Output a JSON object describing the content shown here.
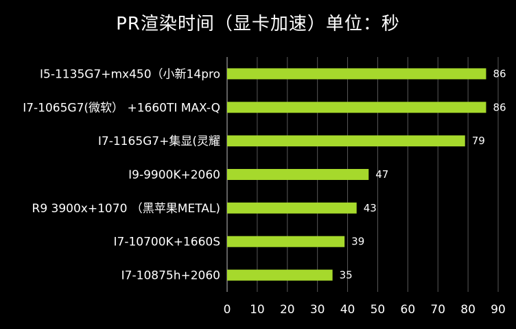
{
  "chart_data": {
    "type": "bar",
    "orientation": "horizontal",
    "title": "PR渲染时间（显卡加速）单位：秒",
    "categories": [
      "I5-1135G7+mx450（小新14pro",
      "I7-1065G7(微软） +1660TI MAX-Q",
      "I7-1165G7+集显(灵耀",
      "I9-9900K+2060",
      "R9 3900x+1070 （黑苹果METAL)",
      "I7-10700K+1660S",
      "I7-10875h+2060"
    ],
    "values": [
      86,
      86,
      79,
      47,
      43,
      39,
      35
    ],
    "xlim": [
      0,
      90
    ],
    "xticks": [
      0,
      10,
      20,
      30,
      40,
      50,
      60,
      70,
      80,
      90
    ],
    "xlabel": "",
    "ylabel": "",
    "grid": "vertical",
    "legend": "none",
    "data_labels": true,
    "colors": {
      "background": "#000000",
      "bar": "#a6d92c",
      "grid": "#595959",
      "axis": "#bfbfbf",
      "text": "#ffffff"
    }
  }
}
